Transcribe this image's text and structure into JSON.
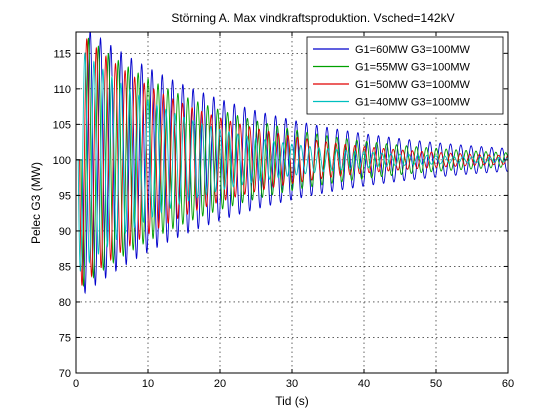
{
  "chart_data": {
    "type": "line",
    "title": "Störning A. Max vindkraftsproduktion. Vsched=142kV",
    "xlabel": "Tid (s)",
    "ylabel": "Pelec G3 (MW)",
    "xlim": [
      0,
      60
    ],
    "ylim": [
      70,
      118
    ],
    "xticks": [
      "0",
      "10",
      "20",
      "30",
      "40",
      "50",
      "60"
    ],
    "yticks": [
      "70",
      "75",
      "80",
      "85",
      "90",
      "95",
      "100",
      "105",
      "110",
      "115"
    ],
    "grid": true,
    "legend_position": "top-right",
    "series": [
      {
        "name": "G1=60MW G3=100MW",
        "color": "#0000cc",
        "oscillation": {
          "baseline": 100,
          "initial_amplitude_mw": 19,
          "period_s": 1.43,
          "amplitude_at_60s_mw": 1.6,
          "start_s": 0.9
        },
        "envelope_peaks": [
          [
            2,
            118
          ],
          [
            10,
            113.5
          ],
          [
            20,
            109
          ],
          [
            30,
            106
          ],
          [
            40,
            104
          ],
          [
            50,
            102.5
          ],
          [
            60,
            101.6
          ]
        ]
      },
      {
        "name": "G1=55MW G3=100MW",
        "color": "#00a000",
        "oscillation": {
          "baseline": 100,
          "initial_amplitude_mw": 18,
          "period_s": 1.38,
          "amplitude_at_60s_mw": 1.0,
          "start_s": 0.7
        },
        "envelope_peaks": [
          [
            2,
            117
          ],
          [
            10,
            111
          ],
          [
            20,
            106
          ],
          [
            30,
            103.5
          ],
          [
            40,
            102
          ],
          [
            50,
            101.4
          ],
          [
            60,
            101
          ]
        ]
      },
      {
        "name": "G1=50MW G3=100MW",
        "color": "#e00000",
        "oscillation": {
          "baseline": 100,
          "initial_amplitude_mw": 18,
          "period_s": 1.33,
          "amplitude_at_60s_mw": 0.6,
          "start_s": 0.5
        },
        "envelope_peaks": [
          [
            2,
            116.5
          ],
          [
            10,
            109
          ],
          [
            20,
            104.5
          ],
          [
            30,
            102.5
          ],
          [
            40,
            101.3
          ],
          [
            50,
            100.9
          ],
          [
            60,
            100.6
          ]
        ]
      },
      {
        "name": "G1=40MW G3=100MW",
        "color": "#00bfbf",
        "oscillation": {
          "baseline": 100,
          "initial_amplitude_mw": 16,
          "period_s": 1.25,
          "amplitude_at_60s_mw": 0.3,
          "start_s": 0.3
        },
        "envelope_peaks": [
          [
            2,
            114
          ],
          [
            10,
            106
          ],
          [
            20,
            102.5
          ],
          [
            30,
            101.2
          ],
          [
            40,
            100.7
          ],
          [
            50,
            100.4
          ],
          [
            60,
            100.3
          ]
        ]
      }
    ]
  }
}
